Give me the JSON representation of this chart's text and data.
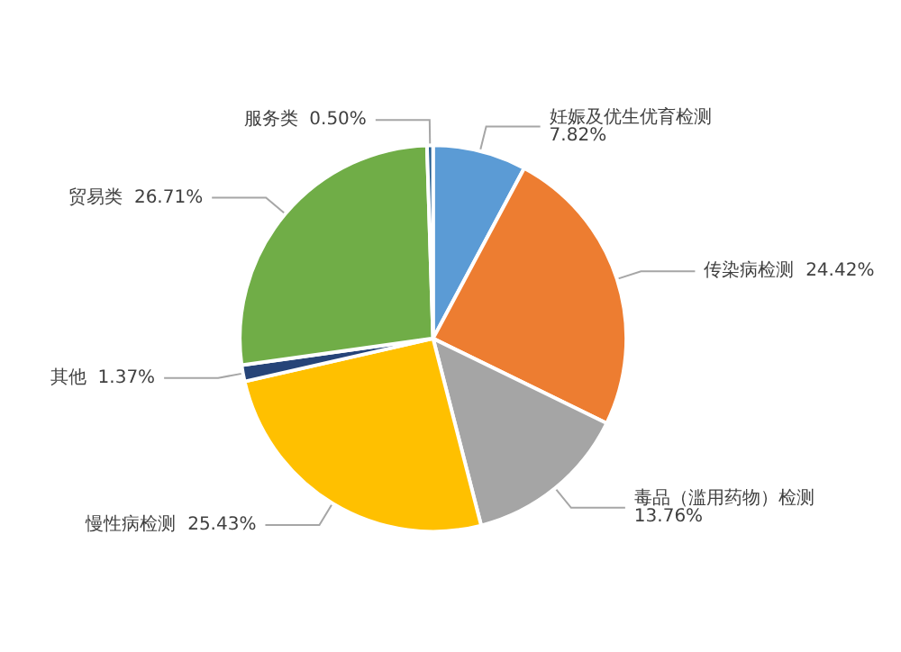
{
  "chart_data": {
    "type": "pie",
    "categories": [
      "妊娠及优生优育检测",
      "传染病检测",
      "毒品（滥用药物）检测",
      "慢性病检测",
      "其他",
      "贸易类",
      "服务类"
    ],
    "values": [
      7.82,
      24.42,
      13.76,
      25.43,
      1.37,
      26.71,
      0.5
    ],
    "colors": [
      "#5b9bd5",
      "#ed7d31",
      "#a5a5a5",
      "#ffc000",
      "#264478",
      "#70ad47",
      "#255e91"
    ],
    "value_labels": [
      "7.82%",
      "24.42%",
      "13.76%",
      "25.43%",
      "1.37%",
      "26.71%",
      "0.50%"
    ],
    "legend": false
  }
}
